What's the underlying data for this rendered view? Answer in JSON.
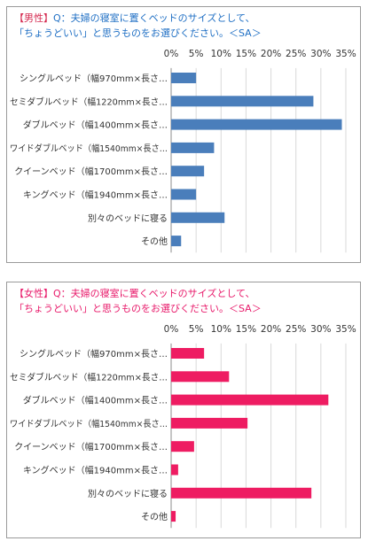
{
  "chart_data": [
    {
      "type": "bar",
      "orientation": "horizontal",
      "title_line1": "【男性】Q：夫婦の寝室に置くベッドのサイズとして、",
      "title_line2": "「ちょうどいい」と思うものをお選びください。＜SA＞",
      "categories": [
        "シングルベッド（幅970mm×長さ…",
        "セミダブルベッド（幅1220mm×長さ…",
        "ダブルベッド（幅1400mm×長さ…",
        "ワイドダブルベッド（幅1540mm×長さ…",
        "クイーンベッド（幅1700mm×長さ…",
        "キングベッド（幅1940mm×長さ…",
        "別々のベッドに寝る",
        "その他"
      ],
      "values": [
        5.0,
        28.5,
        34.2,
        8.6,
        6.6,
        5.0,
        10.7,
        2.0
      ],
      "xticks": [
        "0%",
        "5%",
        "10%",
        "15%",
        "20%",
        "25%",
        "30%",
        "35%"
      ],
      "xlim": [
        0,
        35
      ],
      "grid": true,
      "legend": "none",
      "colors": {
        "bar": "#4a7ebb",
        "title_text": "#1f6fc4",
        "title_tag": "#d4284e"
      }
    },
    {
      "type": "bar",
      "orientation": "horizontal",
      "title_line1": "【女性】Q：夫婦の寝室に置くベッドのサイズとして、",
      "title_line2": "「ちょうどいい」と思うものをお選びください。＜SA＞",
      "categories": [
        "シングルベッド（幅970mm×長さ…",
        "セミダブルベッド（幅1220mm×長さ…",
        "ダブルベッド（幅1400mm×長さ…",
        "ワイドダブルベッド（幅1540mm×長さ…",
        "クイーンベッド（幅1700mm×長さ…",
        "キングベッド（幅1940mm×長さ…",
        "別々のベッドに寝る",
        "その他"
      ],
      "values": [
        6.6,
        11.6,
        31.5,
        15.3,
        4.6,
        1.4,
        28.1,
        0.9
      ],
      "xticks": [
        "0%",
        "5%",
        "10%",
        "15%",
        "20%",
        "25%",
        "30%",
        "35%"
      ],
      "xlim": [
        0,
        35
      ],
      "grid": true,
      "legend": "none",
      "colors": {
        "bar": "#ee1c62",
        "title_text": "#e8196a",
        "title_tag": "#e8196a"
      }
    }
  ]
}
